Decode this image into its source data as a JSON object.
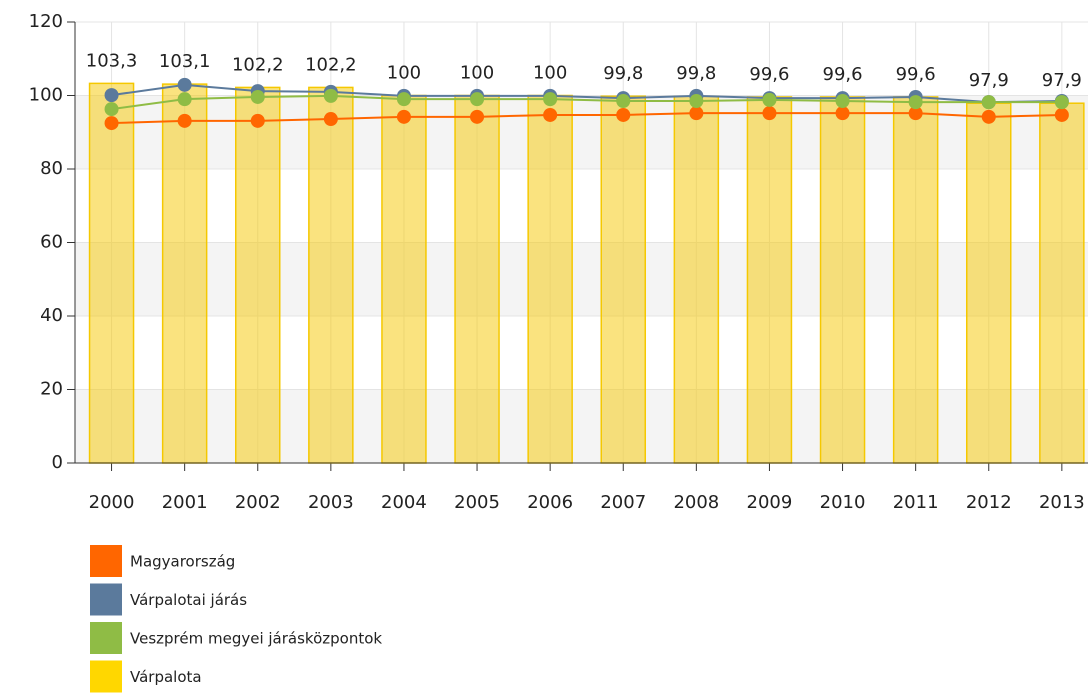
{
  "chart_data": {
    "type": "bar_line",
    "categories": [
      "2000",
      "2001",
      "2002",
      "2003",
      "2004",
      "2005",
      "2006",
      "2007",
      "2008",
      "2009",
      "2010",
      "2011",
      "2012",
      "2013"
    ],
    "series": [
      {
        "name": "Magyarország",
        "color": "#ff6600",
        "type": "line",
        "values": [
          92.5,
          93.1,
          93.1,
          93.6,
          94.2,
          94.2,
          94.7,
          94.7,
          95.2,
          95.2,
          95.2,
          95.2,
          94.2,
          94.7
        ]
      },
      {
        "name": "Várpalotai járás",
        "color": "#5b7a9c",
        "type": "line",
        "values": [
          100.1,
          102.9,
          101.2,
          101,
          99.9,
          99.9,
          99.9,
          99.3,
          99.9,
          99.3,
          99.3,
          99.6,
          98.2,
          98.5
        ]
      },
      {
        "name": "Veszprém megyei járásközpontok",
        "color": "#8fbc45",
        "type": "line",
        "values": [
          96.3,
          99,
          99.6,
          99.9,
          99,
          99,
          99,
          98.5,
          98.5,
          98.8,
          98.5,
          98.2,
          98.2,
          98.2
        ]
      },
      {
        "name": "Várpalota",
        "color": "#f5c800",
        "type": "bar",
        "values": [
          103.3,
          103.1,
          102.2,
          102.2,
          100,
          100,
          100,
          99.8,
          99.8,
          99.6,
          99.6,
          99.6,
          97.9,
          97.9
        ],
        "value_labels": [
          "103,3",
          "103,1",
          "102,2",
          "102,2",
          "100",
          "100",
          "100",
          "99,8",
          "99,8",
          "99,6",
          "99,6",
          "99,6",
          "97,9",
          "97,9"
        ]
      }
    ],
    "ylim": [
      0,
      120
    ],
    "yticks": [
      0,
      20,
      40,
      60,
      80,
      100,
      120
    ],
    "grid": true
  }
}
